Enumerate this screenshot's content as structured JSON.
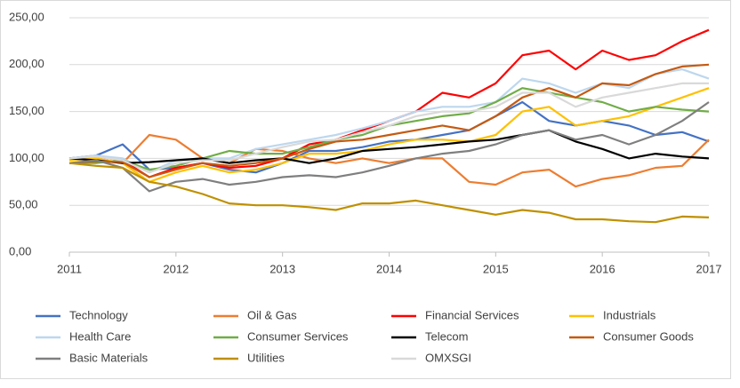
{
  "chart_data": {
    "type": "line",
    "x": [
      2011,
      2011.25,
      2011.5,
      2011.75,
      2012,
      2012.25,
      2012.5,
      2012.75,
      2013,
      2013.25,
      2013.5,
      2013.75,
      2014,
      2014.25,
      2014.5,
      2014.75,
      2015,
      2015.25,
      2015.5,
      2015.75,
      2016,
      2016.25,
      2016.5,
      2016.75,
      2017
    ],
    "series": [
      {
        "name": "Technology",
        "color": "#4472c4",
        "values": [
          100,
          103,
          115,
          88,
          90,
          95,
          88,
          85,
          95,
          108,
          108,
          112,
          118,
          120,
          125,
          130,
          145,
          160,
          140,
          135,
          140,
          135,
          125,
          128,
          118
        ]
      },
      {
        "name": "Oil & Gas",
        "color": "#ed7d31",
        "values": [
          100,
          98,
          95,
          125,
          120,
          100,
          95,
          110,
          108,
          100,
          95,
          100,
          95,
          100,
          100,
          75,
          72,
          85,
          88,
          70,
          78,
          82,
          90,
          92,
          120
        ]
      },
      {
        "name": "Financial Services",
        "color": "#ff0000",
        "values": [
          100,
          102,
          98,
          80,
          90,
          95,
          90,
          92,
          100,
          115,
          120,
          130,
          140,
          150,
          170,
          165,
          180,
          210,
          215,
          195,
          215,
          205,
          210,
          225,
          237
        ]
      },
      {
        "name": "Industrials",
        "color": "#ffc000",
        "values": [
          98,
          100,
          95,
          75,
          85,
          92,
          85,
          88,
          95,
          105,
          105,
          108,
          115,
          120,
          120,
          118,
          125,
          150,
          155,
          135,
          140,
          145,
          155,
          165,
          175
        ]
      },
      {
        "name": "Health Care",
        "color": "#bdd7ee",
        "values": [
          100,
          103,
          100,
          85,
          98,
          100,
          100,
          110,
          115,
          120,
          125,
          132,
          140,
          150,
          155,
          155,
          160,
          185,
          180,
          170,
          180,
          175,
          190,
          195,
          185
        ]
      },
      {
        "name": "Consumer Services",
        "color": "#70ad47",
        "values": [
          95,
          95,
          98,
          88,
          92,
          100,
          108,
          105,
          105,
          112,
          120,
          125,
          135,
          140,
          145,
          148,
          160,
          175,
          170,
          165,
          160,
          150,
          155,
          152,
          150
        ]
      },
      {
        "name": "Telecom",
        "color": "#000000",
        "values": [
          100,
          98,
          95,
          96,
          98,
          100,
          95,
          98,
          100,
          95,
          100,
          108,
          110,
          112,
          115,
          118,
          120,
          125,
          130,
          118,
          110,
          100,
          105,
          102,
          100
        ]
      },
      {
        "name": "Consumer Goods",
        "color": "#c55a11",
        "values": [
          95,
          97,
          96,
          80,
          88,
          95,
          92,
          95,
          100,
          110,
          118,
          120,
          125,
          130,
          135,
          130,
          145,
          165,
          175,
          165,
          180,
          178,
          190,
          198,
          200
        ]
      },
      {
        "name": "Basic Materials",
        "color": "#7f7f7f",
        "values": [
          95,
          98,
          90,
          65,
          75,
          78,
          72,
          75,
          80,
          82,
          80,
          85,
          92,
          100,
          105,
          108,
          115,
          125,
          130,
          120,
          125,
          115,
          125,
          140,
          160
        ]
      },
      {
        "name": "Utilities",
        "color": "#bf9000",
        "values": [
          95,
          92,
          90,
          75,
          70,
          62,
          52,
          50,
          50,
          48,
          45,
          52,
          52,
          55,
          50,
          45,
          40,
          45,
          42,
          35,
          35,
          33,
          32,
          38,
          37
        ]
      },
      {
        "name": "OMXSGI",
        "color": "#d9d9d9",
        "values": [
          100,
          102,
          98,
          85,
          95,
          98,
          98,
          105,
          112,
          118,
          120,
          128,
          135,
          145,
          150,
          150,
          155,
          170,
          170,
          155,
          165,
          170,
          175,
          180,
          180
        ]
      }
    ],
    "xlim": [
      2011,
      2017
    ],
    "xticks": [
      2011,
      2012,
      2013,
      2014,
      2015,
      2016,
      2017
    ],
    "ylim": [
      0,
      250
    ],
    "yticks": [
      {
        "value": 0,
        "label": "0,00"
      },
      {
        "value": 50,
        "label": "50,00"
      },
      {
        "value": 100,
        "label": "100,00"
      },
      {
        "value": 150,
        "label": "150,00"
      },
      {
        "value": 200,
        "label": "200,00"
      },
      {
        "value": 250,
        "label": "250,00"
      }
    ],
    "grid": true,
    "legend": "bottom"
  }
}
